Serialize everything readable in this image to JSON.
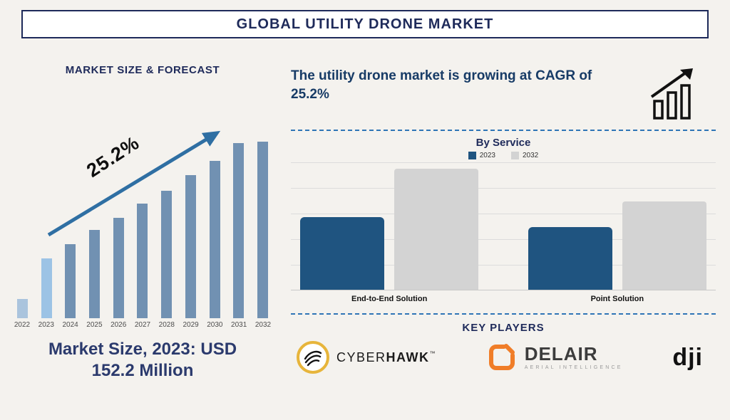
{
  "header": {
    "title": "GLOBAL UTILITY DRONE MARKET"
  },
  "left_panel": {
    "caption": "Market Size, 2023: USD 152.2 Million"
  },
  "right_panel": {
    "headline": "The utility drone market is growing at CAGR of 25.2%"
  },
  "key_players": {
    "heading": "KEY PLAYERS",
    "cyberhawk": {
      "part1": "CYBER",
      "part2": "HAWK",
      "tm": "™"
    },
    "delair": {
      "name": "DELAIR",
      "subtitle": "AERIAL INTELLIGENCE"
    },
    "dji": {
      "name": "dji"
    }
  },
  "colors": {
    "navy": "#1e2a5a",
    "steel_bar": "#7191b2",
    "light_bar_2022": "#aac4dd",
    "light_bar_2023": "#9cc3e5",
    "arrow": "#2f6fa3",
    "series_2023": "#1f5480",
    "series_2032": "#d3d3d3",
    "dashed_divider": "#2e75b6",
    "cyberhawk_gold": "#e7b53b",
    "delair_orange": "#f07d28"
  },
  "chart_data": [
    {
      "type": "bar",
      "title": "MARKET SIZE & FORECAST",
      "categories": [
        "2022",
        "2023",
        "2024",
        "2025",
        "2026",
        "2027",
        "2028",
        "2029",
        "2030",
        "2031",
        "2032"
      ],
      "values": [
        11,
        34,
        42,
        50,
        57,
        65,
        72,
        81,
        89,
        99,
        100
      ],
      "value_scale": "relative height, no numeric axis shown",
      "annotation": "25.2%",
      "bar_colors": [
        "#aac4dd",
        "#9cc3e5",
        "#7191b2",
        "#7191b2",
        "#7191b2",
        "#7191b2",
        "#7191b2",
        "#7191b2",
        "#7191b2",
        "#7191b2",
        "#7191b2"
      ],
      "grid": false,
      "legend_position": "none"
    },
    {
      "type": "bar",
      "title": "By Service",
      "categories": [
        "End-to-End Solution",
        "Point Solution"
      ],
      "series": [
        {
          "name": "2023",
          "color": "#1f5480",
          "values": [
            60,
            52
          ]
        },
        {
          "name": "2032",
          "color": "#d3d3d3",
          "values": [
            100,
            73
          ]
        }
      ],
      "value_scale": "relative height, no numeric axis shown",
      "grid": true,
      "legend_position": "top"
    }
  ]
}
